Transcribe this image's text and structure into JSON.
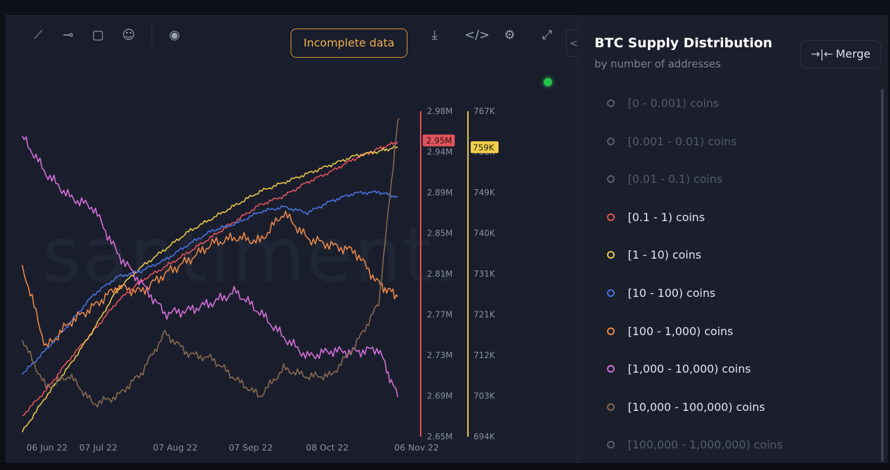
{
  "toolbar": {
    "icons": [
      "line-tool-icon",
      "horizontal-line-icon",
      "note-icon",
      "emoji-icon",
      "eye-icon",
      "download-icon",
      "embed-code-icon",
      "settings-icon",
      "fullscreen-icon"
    ],
    "incomplete_label": "Incomplete data",
    "collapse_glyph": "<"
  },
  "watermark": "santiment.",
  "panel": {
    "title": "BTC Supply Distribution",
    "subtitle": "by number of addresses",
    "merge_label": "Merge",
    "items": [
      {
        "label": "[0 - 0.001) coins",
        "color": "#5a5f6e",
        "active": false
      },
      {
        "label": "[0.001 - 0.01) coins",
        "color": "#5a5f6e",
        "active": false
      },
      {
        "label": "[0.01 - 0.1) coins",
        "color": "#5a5f6e",
        "active": false
      },
      {
        "label": "[0.1 - 1) coins",
        "color": "#e2535b",
        "active": true
      },
      {
        "label": "[1 - 10) coins",
        "color": "#e8c84a",
        "active": true
      },
      {
        "label": "[10 - 100) coins",
        "color": "#4a72e0",
        "active": true
      },
      {
        "label": "[100 - 1,000) coins",
        "color": "#e88748",
        "active": true
      },
      {
        "label": "[1,000 - 10,000) coins",
        "color": "#d46fd8",
        "active": true
      },
      {
        "label": "[10,000 - 100,000) coins",
        "color": "#8a6a50",
        "active": true
      },
      {
        "label": "[100,000 - 1,000,000) coins",
        "color": "#5a5f6e",
        "active": false
      }
    ]
  },
  "chart_data": {
    "type": "line",
    "x_ticks": [
      "06 Jun 22",
      "07 Jul 22",
      "07 Aug 22",
      "07 Sep 22",
      "08 Oct 22",
      "06 Nov 22"
    ],
    "axes": {
      "red": {
        "ticks": [
          "2.98M",
          "2.94M",
          "2.89M",
          "2.85M",
          "2.81M",
          "2.77M",
          "2.73M",
          "2.69M",
          "2.65M"
        ],
        "ylim": [
          2650000,
          2980000
        ],
        "current_label": "2.95M",
        "current_value": 2950000,
        "color": "#e2535b"
      },
      "yellow": {
        "ticks": [
          "767K",
          "758K",
          "749K",
          "740K",
          "731K",
          "721K",
          "712K",
          "703K",
          "694K"
        ],
        "ylim": [
          694000,
          767000
        ],
        "current_label": "759K",
        "current_value": 759000,
        "color": "#e8c84a"
      }
    },
    "x_range": [
      "2022-06-01",
      "2022-11-06"
    ],
    "series": [
      {
        "name": "[0.1 - 1) coins",
        "color": "#e2535b",
        "axis": "red",
        "x": [
          "2022-06-01",
          "2022-06-11",
          "2022-06-21",
          "2022-07-01",
          "2022-07-11",
          "2022-07-21",
          "2022-07-31",
          "2022-08-10",
          "2022-08-20",
          "2022-08-30",
          "2022-09-09",
          "2022-09-19",
          "2022-09-29",
          "2022-10-09",
          "2022-10-19",
          "2022-10-29",
          "2022-11-06"
        ],
        "values": [
          2671000,
          2697000,
          2729000,
          2757000,
          2787000,
          2808000,
          2822000,
          2837000,
          2853000,
          2869000,
          2885000,
          2894000,
          2908000,
          2919000,
          2932000,
          2942000,
          2949000
        ]
      },
      {
        "name": "[1 - 10) coins",
        "color": "#e8c84a",
        "axis": "yellow",
        "x": [
          "2022-06-01",
          "2022-06-11",
          "2022-06-21",
          "2022-07-01",
          "2022-07-11",
          "2022-07-21",
          "2022-07-31",
          "2022-08-10",
          "2022-08-20",
          "2022-08-30",
          "2022-09-09",
          "2022-09-19",
          "2022-09-29",
          "2022-10-09",
          "2022-10-19",
          "2022-10-29",
          "2022-11-06"
        ],
        "values": [
          695000,
          703000,
          710000,
          718000,
          727000,
          732000,
          736000,
          740000,
          743000,
          746000,
          749000,
          751000,
          753000,
          755000,
          757000,
          758000,
          759000
        ]
      },
      {
        "name": "[10 - 100) coins",
        "color": "#4a72e0",
        "axis": "red",
        "x": [
          "2022-06-01",
          "2022-06-11",
          "2022-06-21",
          "2022-07-01",
          "2022-07-11",
          "2022-07-21",
          "2022-07-31",
          "2022-08-10",
          "2022-08-20",
          "2022-08-30",
          "2022-09-09",
          "2022-09-19",
          "2022-09-29",
          "2022-10-09",
          "2022-10-19",
          "2022-10-29",
          "2022-11-06"
        ],
        "values": [
          2713000,
          2738000,
          2765000,
          2794000,
          2812000,
          2818000,
          2829000,
          2845000,
          2859000,
          2866000,
          2878000,
          2883000,
          2877000,
          2889000,
          2897000,
          2898000,
          2893000
        ]
      },
      {
        "name": "[100 - 1,000) coins",
        "color": "#e88748",
        "axis": "red",
        "x": [
          "2022-06-01",
          "2022-06-11",
          "2022-06-21",
          "2022-07-01",
          "2022-07-11",
          "2022-07-21",
          "2022-07-31",
          "2022-08-10",
          "2022-08-20",
          "2022-08-30",
          "2022-09-09",
          "2022-09-19",
          "2022-09-29",
          "2022-10-09",
          "2022-10-19",
          "2022-10-29",
          "2022-11-06"
        ],
        "values": [
          2824000,
          2740000,
          2766000,
          2782000,
          2802000,
          2797000,
          2815000,
          2829000,
          2846000,
          2852000,
          2848000,
          2877000,
          2851000,
          2844000,
          2838000,
          2805000,
          2792000
        ]
      },
      {
        "name": "[1,000 - 10,000) coins",
        "color": "#d46fd8",
        "axis": "red",
        "x": [
          "2022-06-01",
          "2022-06-11",
          "2022-06-21",
          "2022-07-01",
          "2022-07-11",
          "2022-07-21",
          "2022-07-31",
          "2022-08-10",
          "2022-08-20",
          "2022-08-30",
          "2022-09-09",
          "2022-09-19",
          "2022-09-29",
          "2022-10-09",
          "2022-10-19",
          "2022-10-29",
          "2022-11-06"
        ],
        "values": [
          2955000,
          2917000,
          2893000,
          2882000,
          2836000,
          2806000,
          2775000,
          2778000,
          2786000,
          2797000,
          2776000,
          2751000,
          2731000,
          2737000,
          2736000,
          2739000,
          2690000
        ]
      },
      {
        "name": "[10,000 - 100,000) coins",
        "color": "#8a6a50",
        "axis": "red",
        "x": [
          "2022-06-01",
          "2022-06-11",
          "2022-06-21",
          "2022-07-01",
          "2022-07-11",
          "2022-07-21",
          "2022-07-31",
          "2022-08-10",
          "2022-08-20",
          "2022-08-30",
          "2022-09-09",
          "2022-09-19",
          "2022-09-29",
          "2022-10-09",
          "2022-10-19",
          "2022-10-29",
          "2022-11-06"
        ],
        "values": [
          2748000,
          2700000,
          2712000,
          2683000,
          2691000,
          2714000,
          2755000,
          2734000,
          2729000,
          2708000,
          2691000,
          2719000,
          2711000,
          2712000,
          2742000,
          2785000,
          2970000
        ]
      }
    ]
  }
}
